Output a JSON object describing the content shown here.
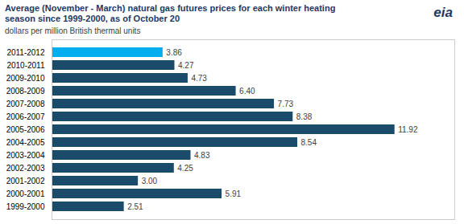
{
  "chart_data": {
    "type": "bar",
    "orientation": "horizontal",
    "title": "Average (November - March) natural gas futures prices for each winter heating\nseason since 1999-2000,  as of October 20",
    "subtitle": "dollars per million British thermal units",
    "annotations": [
      "eia"
    ],
    "categories": [
      "2011-2012",
      "2010-2011",
      "2009-2010",
      "2008-2009",
      "2007-2008",
      "2006-2007",
      "2005-2006",
      "2004-2005",
      "2003-2004",
      "2002-2003",
      "2001-2002",
      "2000-2001",
      "1999-2000"
    ],
    "values": [
      3.86,
      4.27,
      4.73,
      6.4,
      7.73,
      8.38,
      11.92,
      8.54,
      4.83,
      4.25,
      3.0,
      5.91,
      2.51
    ],
    "value_labels": [
      "3.86",
      "4.27",
      "4.73",
      "6.40",
      "7.73",
      "8.38",
      "11.92",
      "8.54",
      "4.83",
      "4.25",
      "3.00",
      "5.91",
      "2.51"
    ],
    "colors": [
      "#00AEEF",
      "#1A4B6B",
      "#1A4B6B",
      "#1A4B6B",
      "#1A4B6B",
      "#1A4B6B",
      "#1A4B6B",
      "#1A4B6B",
      "#1A4B6B",
      "#1A4B6B",
      "#1A4B6B",
      "#1A4B6B",
      "#1A4B6B"
    ],
    "xlim": [
      0,
      14.0
    ],
    "data_labels": true,
    "tick_labels": "y",
    "grid": false
  }
}
